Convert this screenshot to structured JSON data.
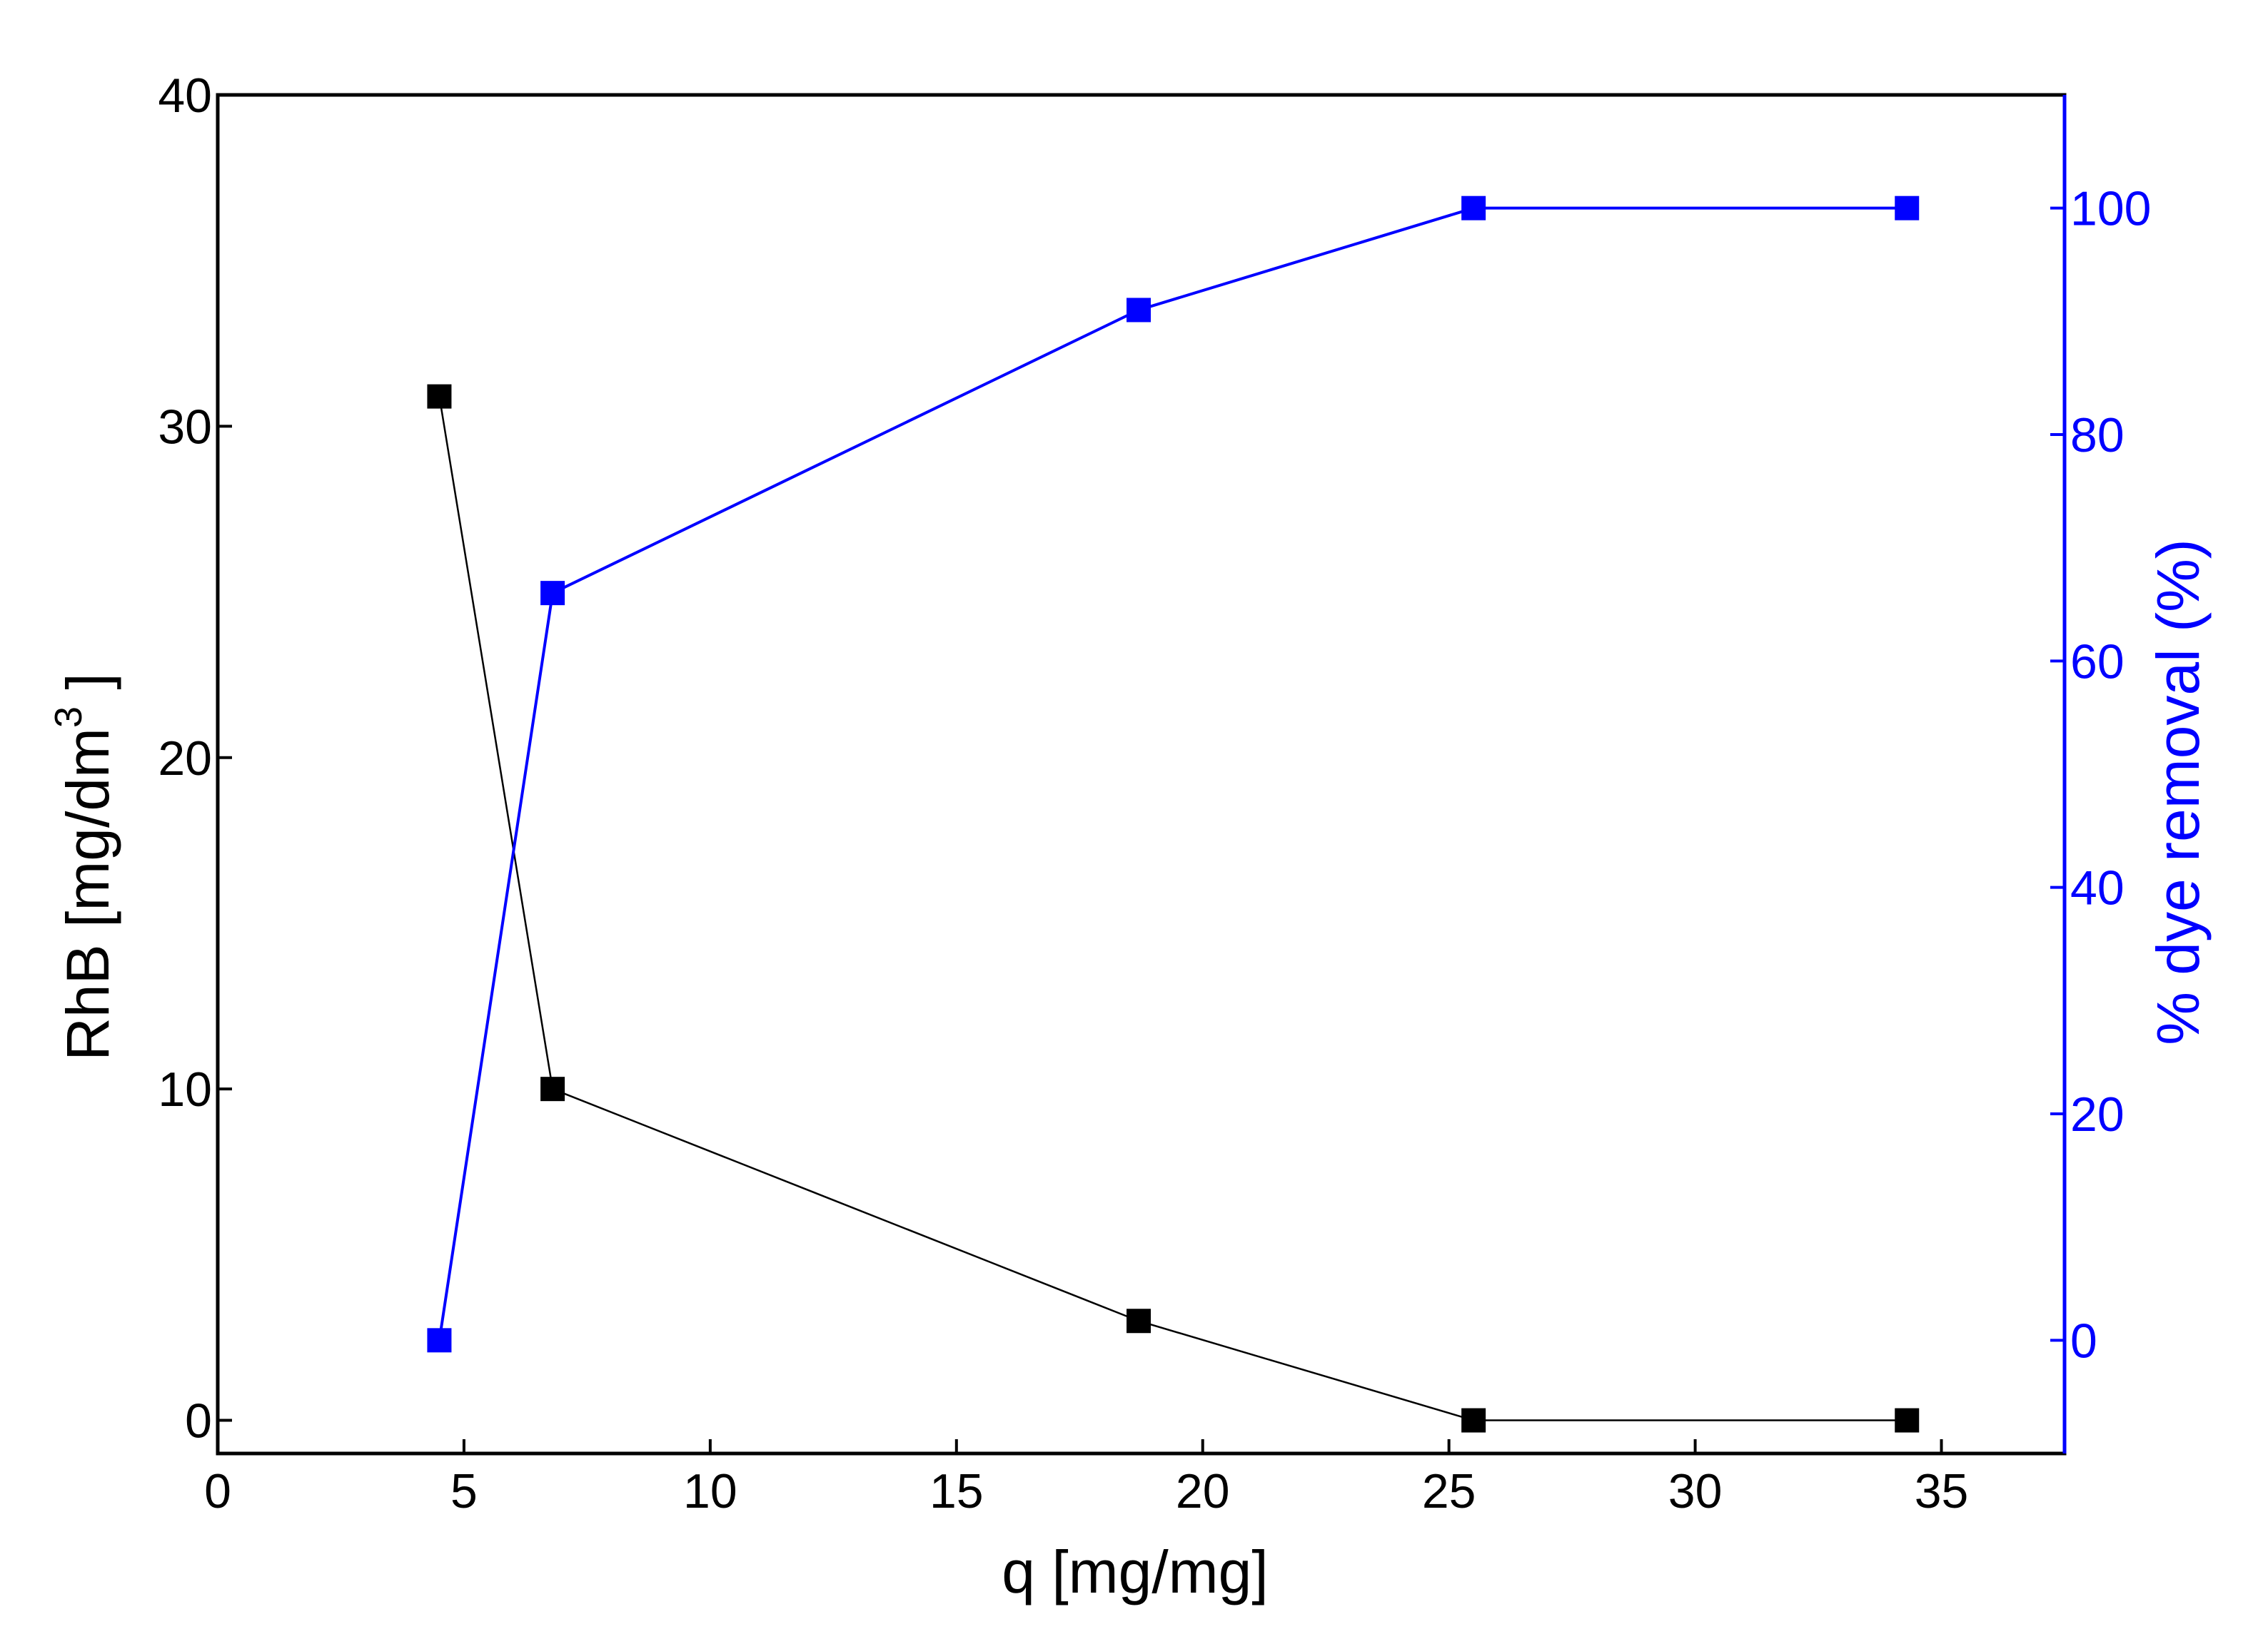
{
  "chart_data": {
    "type": "line",
    "title": "",
    "xlabel": "q [mg/mg]",
    "ylabel": "RhB [mg/dm",
    "ylabel_superscript": "3",
    "ylabel_suffix": " ]",
    "y2label": "% dye removal (%)",
    "xlim": [
      0,
      37.5
    ],
    "ylim": [
      -1,
      40
    ],
    "y2lim": [
      -10,
      110
    ],
    "x_ticks": [
      0,
      5,
      10,
      15,
      20,
      25,
      30,
      35
    ],
    "y_ticks": [
      0,
      10,
      20,
      30,
      40
    ],
    "y2_ticks": [
      0,
      20,
      40,
      60,
      80,
      100
    ],
    "grid": false,
    "colors": {
      "rhb": "#000000",
      "removal": "#0000ff"
    },
    "series": [
      {
        "axis": "left",
        "x": [
          4.5,
          6.8,
          18.7,
          25.5,
          34.3
        ],
        "values": [
          30.9,
          10.0,
          3.0,
          0.0,
          0.0
        ]
      },
      {
        "axis": "right",
        "x": [
          4.5,
          6.8,
          18.7,
          25.5,
          34.3
        ],
        "values": [
          0,
          66,
          91,
          100,
          100
        ]
      }
    ]
  }
}
